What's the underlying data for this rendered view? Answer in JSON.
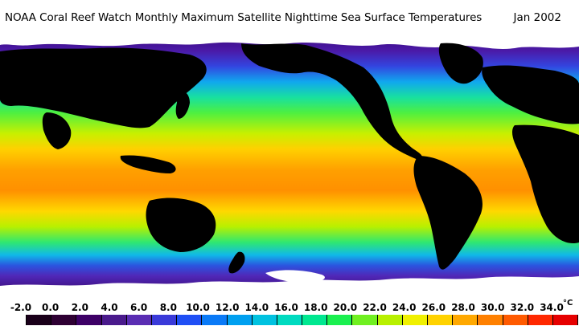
{
  "title": "NOAA Coral Reef Watch Monthly Maximum Satellite Nighttime Sea Surface Temperatures",
  "date": "Jan 2002",
  "legend": {
    "labels": [
      "-2.0",
      "0.0",
      "2.0",
      "4.0",
      "6.0",
      "8.0",
      "10.0",
      "12.0",
      "14.0",
      "16.0",
      "18.0",
      "20.0",
      "22.0",
      "24.0",
      "26.0",
      "28.0",
      "30.0",
      "32.0",
      "34.0"
    ],
    "unit": "°C",
    "colors": [
      "#1a001a",
      "#2e0033",
      "#3d0066",
      "#4a1a8c",
      "#5a2db3",
      "#3a3ad9",
      "#1f4ff5",
      "#0a7af7",
      "#00a0f0",
      "#00c2e0",
      "#00dbc0",
      "#00e890",
      "#1af050",
      "#70f020",
      "#b8f000",
      "#f0f000",
      "#ffd200",
      "#ffa800",
      "#ff8000",
      "#ff5a00",
      "#ff2800",
      "#e60000"
    ]
  },
  "colors": {
    "land": "#000000",
    "ice": "#ffffff"
  }
}
